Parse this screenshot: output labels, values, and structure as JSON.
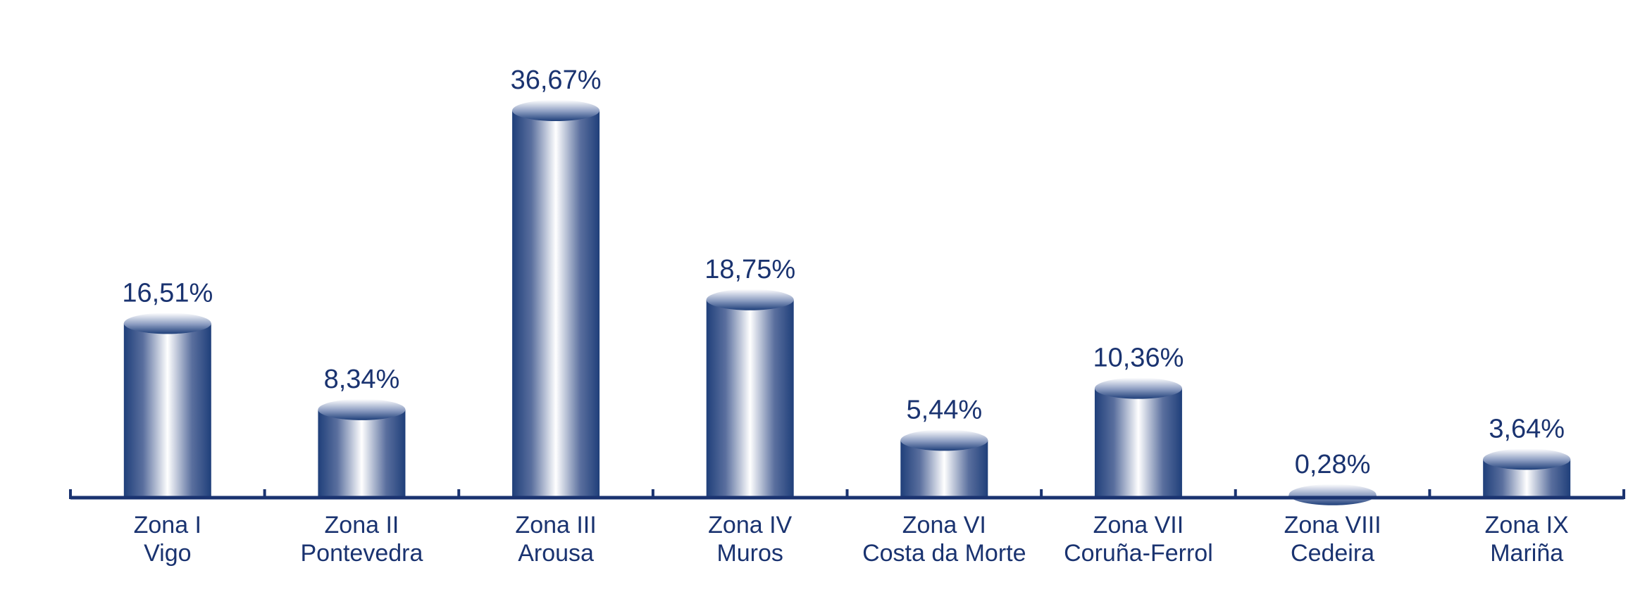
{
  "chart_data": {
    "type": "bar",
    "style": "3d-cylinder",
    "categories": [
      [
        "Zona I",
        "Vigo"
      ],
      [
        "Zona II",
        "Pontevedra"
      ],
      [
        "Zona III",
        "Arousa"
      ],
      [
        "Zona IV",
        "Muros"
      ],
      [
        "Zona VI",
        "Costa da Morte"
      ],
      [
        "Zona VII",
        "Coruña-Ferrol"
      ],
      [
        "Zona VIII",
        "Cedeira"
      ],
      [
        "Zona IX",
        "Mariña"
      ]
    ],
    "values": [
      16.51,
      8.34,
      36.67,
      18.75,
      5.44,
      10.36,
      0.28,
      3.64
    ],
    "value_labels": [
      "16,51%",
      "8,34%",
      "36,67%",
      "18,75%",
      "5,44%",
      "10,36%",
      "0,28%",
      "3,64%"
    ],
    "title": "",
    "xlabel": "",
    "ylabel": "",
    "ylim": [
      0,
      40
    ],
    "grid": false,
    "legend": "none",
    "colors": {
      "bar_dark": "#1f3f7a",
      "bar_light": "#ffffff",
      "axis": "#1a3370",
      "text": "#1a3370"
    }
  }
}
